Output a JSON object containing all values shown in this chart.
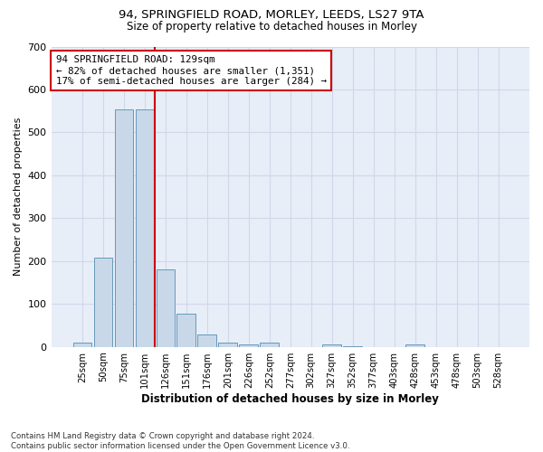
{
  "title_line1": "94, SPRINGFIELD ROAD, MORLEY, LEEDS, LS27 9TA",
  "title_line2": "Size of property relative to detached houses in Morley",
  "xlabel": "Distribution of detached houses by size in Morley",
  "ylabel": "Number of detached properties",
  "bar_labels": [
    "25sqm",
    "50sqm",
    "75sqm",
    "101sqm",
    "126sqm",
    "151sqm",
    "176sqm",
    "201sqm",
    "226sqm",
    "252sqm",
    "277sqm",
    "302sqm",
    "327sqm",
    "352sqm",
    "377sqm",
    "403sqm",
    "428sqm",
    "453sqm",
    "478sqm",
    "503sqm",
    "528sqm"
  ],
  "bar_values": [
    10,
    207,
    553,
    553,
    180,
    78,
    28,
    10,
    6,
    10,
    0,
    0,
    5,
    2,
    0,
    0,
    5,
    0,
    0,
    0,
    0
  ],
  "bar_color": "#c8d8e8",
  "bar_edge_color": "#6699bb",
  "property_line_index": 4,
  "property_line_color": "#cc0000",
  "annotation_text": "94 SPRINGFIELD ROAD: 129sqm\n← 82% of detached houses are smaller (1,351)\n17% of semi-detached houses are larger (284) →",
  "annotation_box_color": "#ffffff",
  "annotation_box_edge_color": "#cc0000",
  "ylim": [
    0,
    700
  ],
  "yticks": [
    0,
    100,
    200,
    300,
    400,
    500,
    600,
    700
  ],
  "grid_color": "#d0d8e8",
  "background_color": "#e8eef8",
  "footnote": "Contains HM Land Registry data © Crown copyright and database right 2024.\nContains public sector information licensed under the Open Government Licence v3.0."
}
